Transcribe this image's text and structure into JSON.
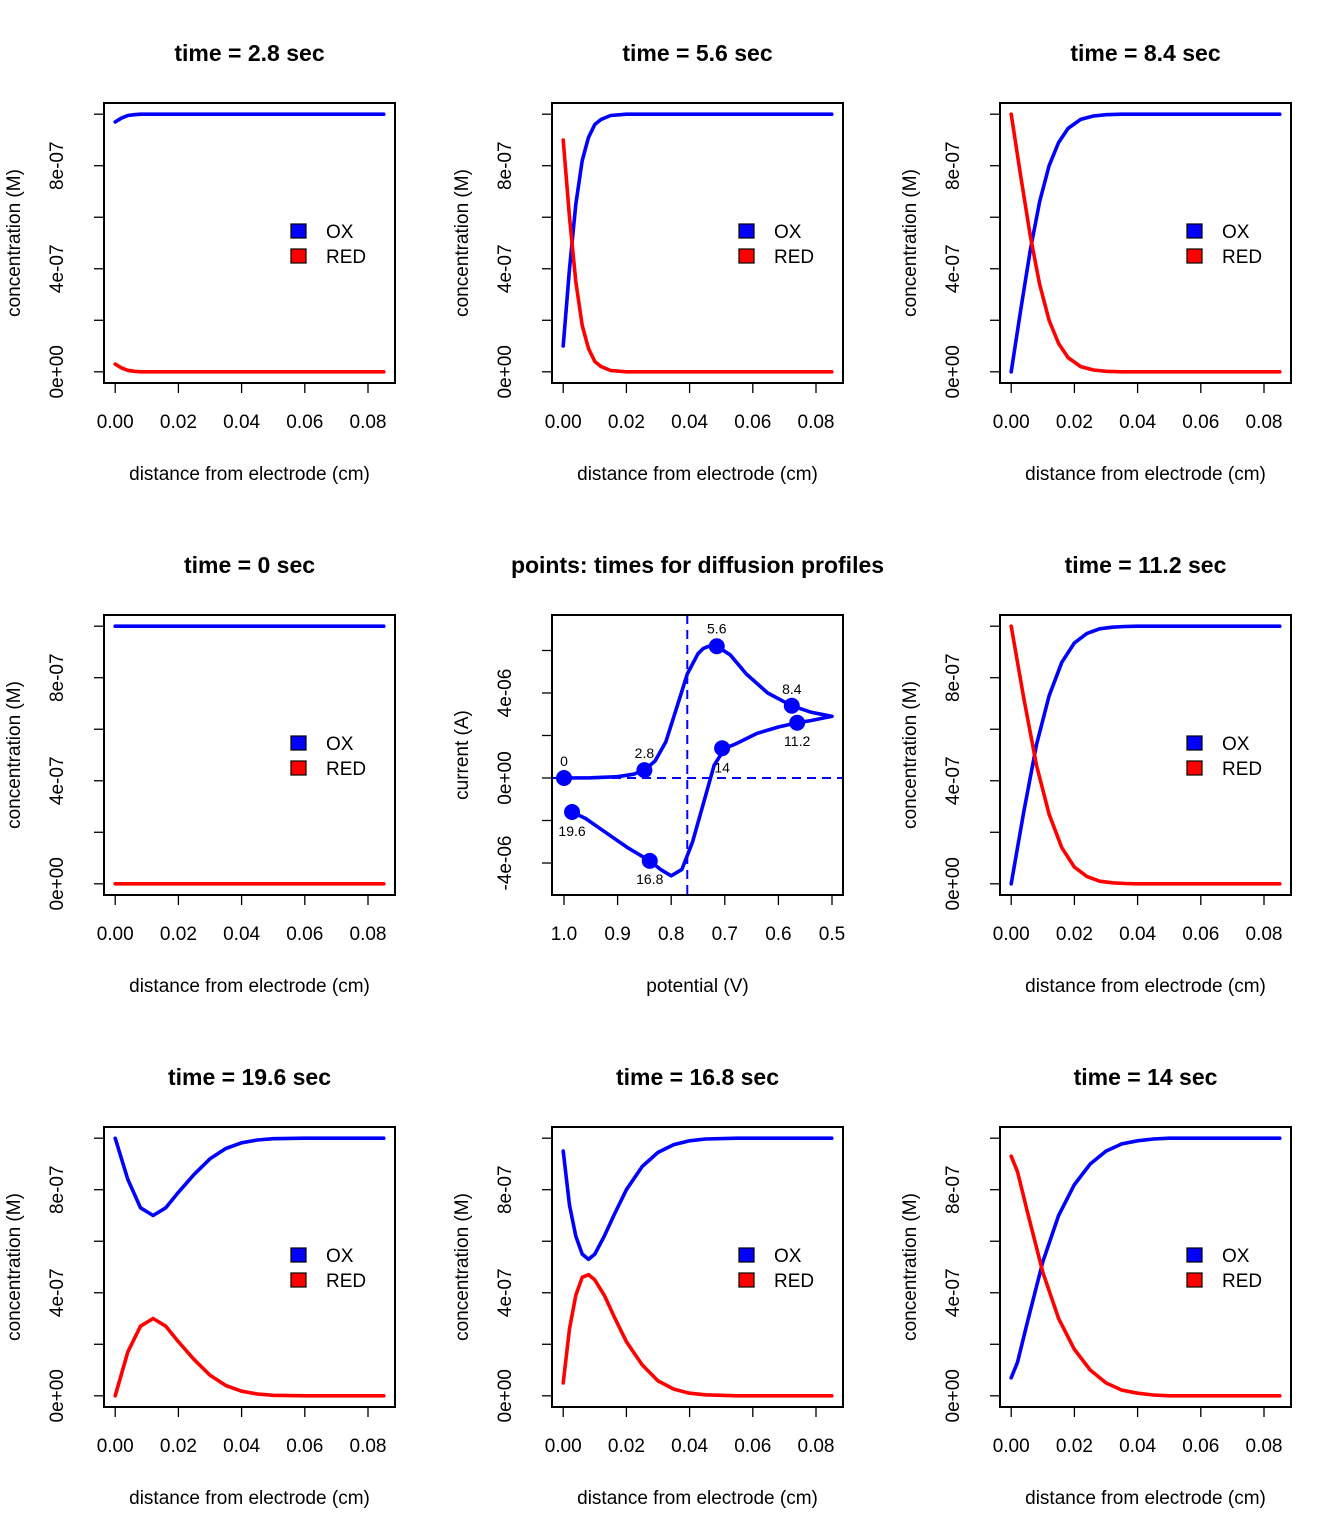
{
  "colors": {
    "ox": "#0000ff",
    "red": "#ff0000",
    "frame": "#000000"
  },
  "legend": {
    "ox_label": "OX",
    "red_label": "RED"
  },
  "chart_data": [
    {
      "type": "line",
      "title": "time =  2.8  sec",
      "xlabel": "distance from electrode (cm)",
      "ylabel": "concentration (M)",
      "xlim": [
        0,
        0.085
      ],
      "ylim": [
        0,
        1e-06
      ],
      "xticks": [
        "0.00",
        "0.02",
        "0.04",
        "0.06",
        "0.08"
      ],
      "yticks": [
        "0e+00",
        "4e-07",
        "8e-07"
      ],
      "legend_position": "right",
      "series": [
        {
          "name": "OX",
          "color": "#0000ff",
          "x": [
            0,
            0.002,
            0.004,
            0.006,
            0.008,
            0.012,
            0.085
          ],
          "y": [
            9.7e-07,
            9.85e-07,
            9.95e-07,
            9.98e-07,
            1e-06,
            1e-06,
            1e-06
          ]
        },
        {
          "name": "RED",
          "color": "#ff0000",
          "x": [
            0,
            0.002,
            0.004,
            0.006,
            0.008,
            0.012,
            0.085
          ],
          "y": [
            3e-08,
            1.5e-08,
            6e-09,
            2e-09,
            0,
            0,
            0
          ]
        }
      ]
    },
    {
      "type": "line",
      "title": "time =  5.6  sec",
      "xlabel": "distance from electrode (cm)",
      "ylabel": "concentration (M)",
      "xlim": [
        0,
        0.085
      ],
      "ylim": [
        0,
        1e-06
      ],
      "xticks": [
        "0.00",
        "0.02",
        "0.04",
        "0.06",
        "0.08"
      ],
      "yticks": [
        "0e+00",
        "4e-07",
        "8e-07"
      ],
      "legend_position": "right",
      "series": [
        {
          "name": "OX",
          "color": "#0000ff",
          "x": [
            0,
            0.002,
            0.004,
            0.006,
            0.008,
            0.01,
            0.012,
            0.015,
            0.02,
            0.025,
            0.085
          ],
          "y": [
            1e-07,
            4e-07,
            6.5e-07,
            8.2e-07,
            9.1e-07,
            9.6e-07,
            9.8e-07,
            9.95e-07,
            1e-06,
            1e-06,
            1e-06
          ]
        },
        {
          "name": "RED",
          "color": "#ff0000",
          "x": [
            0,
            0.002,
            0.004,
            0.006,
            0.008,
            0.01,
            0.012,
            0.015,
            0.02,
            0.025,
            0.085
          ],
          "y": [
            9e-07,
            6e-07,
            3.5e-07,
            1.8e-07,
            9e-08,
            4e-08,
            2e-08,
            5e-09,
            0,
            0,
            0
          ]
        }
      ]
    },
    {
      "type": "line",
      "title": "time =  8.4  sec",
      "xlabel": "distance from electrode (cm)",
      "ylabel": "concentration (M)",
      "xlim": [
        0,
        0.085
      ],
      "ylim": [
        0,
        1e-06
      ],
      "xticks": [
        "0.00",
        "0.02",
        "0.04",
        "0.06",
        "0.08"
      ],
      "yticks": [
        "0e+00",
        "4e-07",
        "8e-07"
      ],
      "legend_position": "right",
      "series": [
        {
          "name": "OX",
          "color": "#0000ff",
          "x": [
            0,
            0.003,
            0.006,
            0.009,
            0.012,
            0.015,
            0.018,
            0.022,
            0.026,
            0.03,
            0.035,
            0.085
          ],
          "y": [
            0,
            2.4e-07,
            4.7e-07,
            6.6e-07,
            8e-07,
            8.9e-07,
            9.45e-07,
            9.8e-07,
            9.93e-07,
            9.98e-07,
            1e-06,
            1e-06
          ]
        },
        {
          "name": "RED",
          "color": "#ff0000",
          "x": [
            0,
            0.003,
            0.006,
            0.009,
            0.012,
            0.015,
            0.018,
            0.022,
            0.026,
            0.03,
            0.035,
            0.085
          ],
          "y": [
            1e-06,
            7.6e-07,
            5.3e-07,
            3.4e-07,
            2e-07,
            1.1e-07,
            5.5e-08,
            2e-08,
            7e-09,
            2e-09,
            0,
            0
          ]
        }
      ]
    },
    {
      "type": "line",
      "title": "time =  0  sec",
      "xlabel": "distance from electrode (cm)",
      "ylabel": "concentration (M)",
      "xlim": [
        0,
        0.085
      ],
      "ylim": [
        0,
        1e-06
      ],
      "xticks": [
        "0.00",
        "0.02",
        "0.04",
        "0.06",
        "0.08"
      ],
      "yticks": [
        "0e+00",
        "4e-07",
        "8e-07"
      ],
      "legend_position": "right",
      "series": [
        {
          "name": "OX",
          "color": "#0000ff",
          "x": [
            0,
            0.085
          ],
          "y": [
            1e-06,
            1e-06
          ]
        },
        {
          "name": "RED",
          "color": "#ff0000",
          "x": [
            0,
            0.085
          ],
          "y": [
            0,
            0
          ]
        }
      ]
    },
    {
      "type": "line",
      "title": "points: times for diffusion profiles",
      "xlabel": "potential (V)",
      "ylabel": "current (A)",
      "xlim": [
        1.0,
        0.5
      ],
      "ylim": [
        -5.5e-06,
        7.5e-06
      ],
      "xticks": [
        "1.0",
        "0.9",
        "0.8",
        "0.7",
        "0.6",
        "0.5"
      ],
      "yticks": [
        "-4e-06",
        "0e+00",
        "4e-06"
      ],
      "reference_lines": {
        "vertical_x": 0.77,
        "horizontal_y": 0
      },
      "series": [
        {
          "color": "#0000ff",
          "x": [
            1.0,
            0.95,
            0.9,
            0.87,
            0.85,
            0.83,
            0.81,
            0.79,
            0.77,
            0.75,
            0.74,
            0.73,
            0.715,
            0.69,
            0.66,
            0.62,
            0.575,
            0.54,
            0.51,
            0.5,
            0.51,
            0.54,
            0.565,
            0.6,
            0.64,
            0.68,
            0.7,
            0.72,
            0.74,
            0.76,
            0.78,
            0.8,
            0.82,
            0.84,
            0.88,
            0.92,
            0.96,
            0.985
          ],
          "y": [
            0,
            1e-08,
            6e-08,
            1.8e-07,
            3.7e-07,
            8e-07,
            1.7e-06,
            3.3e-06,
            4.9e-06,
            5.85e-06,
            6.1e-06,
            6.2e-06,
            6.2e-06,
            5.8e-06,
            4.9e-06,
            4e-06,
            3.4e-06,
            3.1e-06,
            2.95e-06,
            2.9e-06,
            2.85e-06,
            2.7e-06,
            2.6e-06,
            2.4e-06,
            2.1e-06,
            1.6e-06,
            1.4e-06,
            6e-07,
            -1.2e-06,
            -3e-06,
            -4.3e-06,
            -4.6e-06,
            -4.3e-06,
            -3.9e-06,
            -3.3e-06,
            -2.6e-06,
            -1.9e-06,
            -1.6e-06
          ]
        }
      ],
      "points": [
        {
          "label": "0",
          "x": 1.0,
          "y": 0
        },
        {
          "label": "2.8",
          "x": 0.85,
          "y": 3.7e-07
        },
        {
          "label": "5.6",
          "x": 0.715,
          "y": 6.2e-06
        },
        {
          "label": "8.4",
          "x": 0.575,
          "y": 3.4e-06
        },
        {
          "label": "11.2",
          "x": 0.565,
          "y": 2.6e-06
        },
        {
          "label": "14",
          "x": 0.705,
          "y": 1.4e-06
        },
        {
          "label": "16.8",
          "x": 0.84,
          "y": -3.9e-06
        },
        {
          "label": "19.6",
          "x": 0.985,
          "y": -1.6e-06
        }
      ]
    },
    {
      "type": "line",
      "title": "time =  11.2  sec",
      "xlabel": "distance from electrode (cm)",
      "ylabel": "concentration (M)",
      "xlim": [
        0,
        0.085
      ],
      "ylim": [
        0,
        1e-06
      ],
      "xticks": [
        "0.00",
        "0.02",
        "0.04",
        "0.06",
        "0.08"
      ],
      "yticks": [
        "0e+00",
        "4e-07",
        "8e-07"
      ],
      "legend_position": "right",
      "series": [
        {
          "name": "OX",
          "color": "#0000ff",
          "x": [
            0,
            0.004,
            0.008,
            0.012,
            0.016,
            0.02,
            0.024,
            0.028,
            0.032,
            0.036,
            0.04,
            0.085
          ],
          "y": [
            0,
            2.8e-07,
            5.4e-07,
            7.3e-07,
            8.6e-07,
            9.35e-07,
            9.72e-07,
            9.9e-07,
            9.96e-07,
            9.99e-07,
            1e-06,
            1e-06
          ]
        },
        {
          "name": "RED",
          "color": "#ff0000",
          "x": [
            0,
            0.004,
            0.008,
            0.012,
            0.016,
            0.02,
            0.024,
            0.028,
            0.032,
            0.036,
            0.04,
            0.085
          ],
          "y": [
            1e-06,
            7.2e-07,
            4.6e-07,
            2.7e-07,
            1.4e-07,
            6.5e-08,
            2.8e-08,
            1e-08,
            4e-09,
            1e-09,
            0,
            0
          ]
        }
      ]
    },
    {
      "type": "line",
      "title": "time =  19.6  sec",
      "xlabel": "distance from electrode (cm)",
      "ylabel": "concentration (M)",
      "xlim": [
        0,
        0.085
      ],
      "ylim": [
        0,
        1e-06
      ],
      "xticks": [
        "0.00",
        "0.02",
        "0.04",
        "0.06",
        "0.08"
      ],
      "yticks": [
        "0e+00",
        "4e-07",
        "8e-07"
      ],
      "legend_position": "right",
      "series": [
        {
          "name": "OX",
          "color": "#0000ff",
          "x": [
            0,
            0.004,
            0.008,
            0.012,
            0.016,
            0.02,
            0.025,
            0.03,
            0.035,
            0.04,
            0.045,
            0.05,
            0.06,
            0.085
          ],
          "y": [
            1e-06,
            8.4e-07,
            7.3e-07,
            7e-07,
            7.3e-07,
            7.9e-07,
            8.6e-07,
            9.2e-07,
            9.6e-07,
            9.82e-07,
            9.93e-07,
            9.98e-07,
            1e-06,
            1e-06
          ]
        },
        {
          "name": "RED",
          "color": "#ff0000",
          "x": [
            0,
            0.004,
            0.008,
            0.012,
            0.016,
            0.02,
            0.025,
            0.03,
            0.035,
            0.04,
            0.045,
            0.05,
            0.06,
            0.085
          ],
          "y": [
            0,
            1.7e-07,
            2.7e-07,
            3e-07,
            2.7e-07,
            2.1e-07,
            1.4e-07,
            8e-08,
            4e-08,
            1.8e-08,
            7e-09,
            2e-09,
            0,
            0
          ]
        }
      ]
    },
    {
      "type": "line",
      "title": "time =  16.8  sec",
      "xlabel": "distance from electrode (cm)",
      "ylabel": "concentration (M)",
      "xlim": [
        0,
        0.085
      ],
      "ylim": [
        0,
        1e-06
      ],
      "xticks": [
        "0.00",
        "0.02",
        "0.04",
        "0.06",
        "0.08"
      ],
      "yticks": [
        "0e+00",
        "4e-07",
        "8e-07"
      ],
      "legend_position": "right",
      "series": [
        {
          "name": "OX",
          "color": "#0000ff",
          "x": [
            0,
            0.002,
            0.004,
            0.006,
            0.008,
            0.01,
            0.013,
            0.016,
            0.02,
            0.025,
            0.03,
            0.035,
            0.04,
            0.045,
            0.055,
            0.085
          ],
          "y": [
            9.5e-07,
            7.4e-07,
            6.2e-07,
            5.5e-07,
            5.3e-07,
            5.5e-07,
            6.2e-07,
            7e-07,
            8e-07,
            8.9e-07,
            9.45e-07,
            9.75e-07,
            9.9e-07,
            9.97e-07,
            1e-06,
            1e-06
          ]
        },
        {
          "name": "RED",
          "color": "#ff0000",
          "x": [
            0,
            0.002,
            0.004,
            0.006,
            0.008,
            0.01,
            0.013,
            0.016,
            0.02,
            0.025,
            0.03,
            0.035,
            0.04,
            0.045,
            0.055,
            0.085
          ],
          "y": [
            5e-08,
            2.6e-07,
            3.9e-07,
            4.6e-07,
            4.7e-07,
            4.5e-07,
            3.9e-07,
            3.1e-07,
            2.1e-07,
            1.2e-07,
            5.8e-08,
            2.6e-08,
            1e-08,
            4e-09,
            0,
            0
          ]
        }
      ]
    },
    {
      "type": "line",
      "title": "time =  14  sec",
      "xlabel": "distance from electrode (cm)",
      "ylabel": "concentration (M)",
      "xlim": [
        0,
        0.085
      ],
      "ylim": [
        0,
        1e-06
      ],
      "xticks": [
        "0.00",
        "0.02",
        "0.04",
        "0.06",
        "0.08"
      ],
      "yticks": [
        "0e+00",
        "4e-07",
        "8e-07"
      ],
      "legend_position": "right",
      "series": [
        {
          "name": "OX",
          "color": "#0000ff",
          "x": [
            0,
            0.002,
            0.005,
            0.01,
            0.015,
            0.02,
            0.025,
            0.03,
            0.035,
            0.04,
            0.045,
            0.05,
            0.085
          ],
          "y": [
            7e-08,
            1.3e-07,
            2.8e-07,
            5.2e-07,
            7e-07,
            8.2e-07,
            9e-07,
            9.5e-07,
            9.78e-07,
            9.9e-07,
            9.97e-07,
            1e-06,
            1e-06
          ]
        },
        {
          "name": "RED",
          "color": "#ff0000",
          "x": [
            0,
            0.002,
            0.005,
            0.01,
            0.015,
            0.02,
            0.025,
            0.03,
            0.035,
            0.04,
            0.045,
            0.05,
            0.085
          ],
          "y": [
            9.3e-07,
            8.7e-07,
            7.2e-07,
            4.8e-07,
            3e-07,
            1.8e-07,
            1e-07,
            5e-08,
            2.2e-08,
            1e-08,
            3e-09,
            0,
            0
          ]
        }
      ]
    }
  ]
}
